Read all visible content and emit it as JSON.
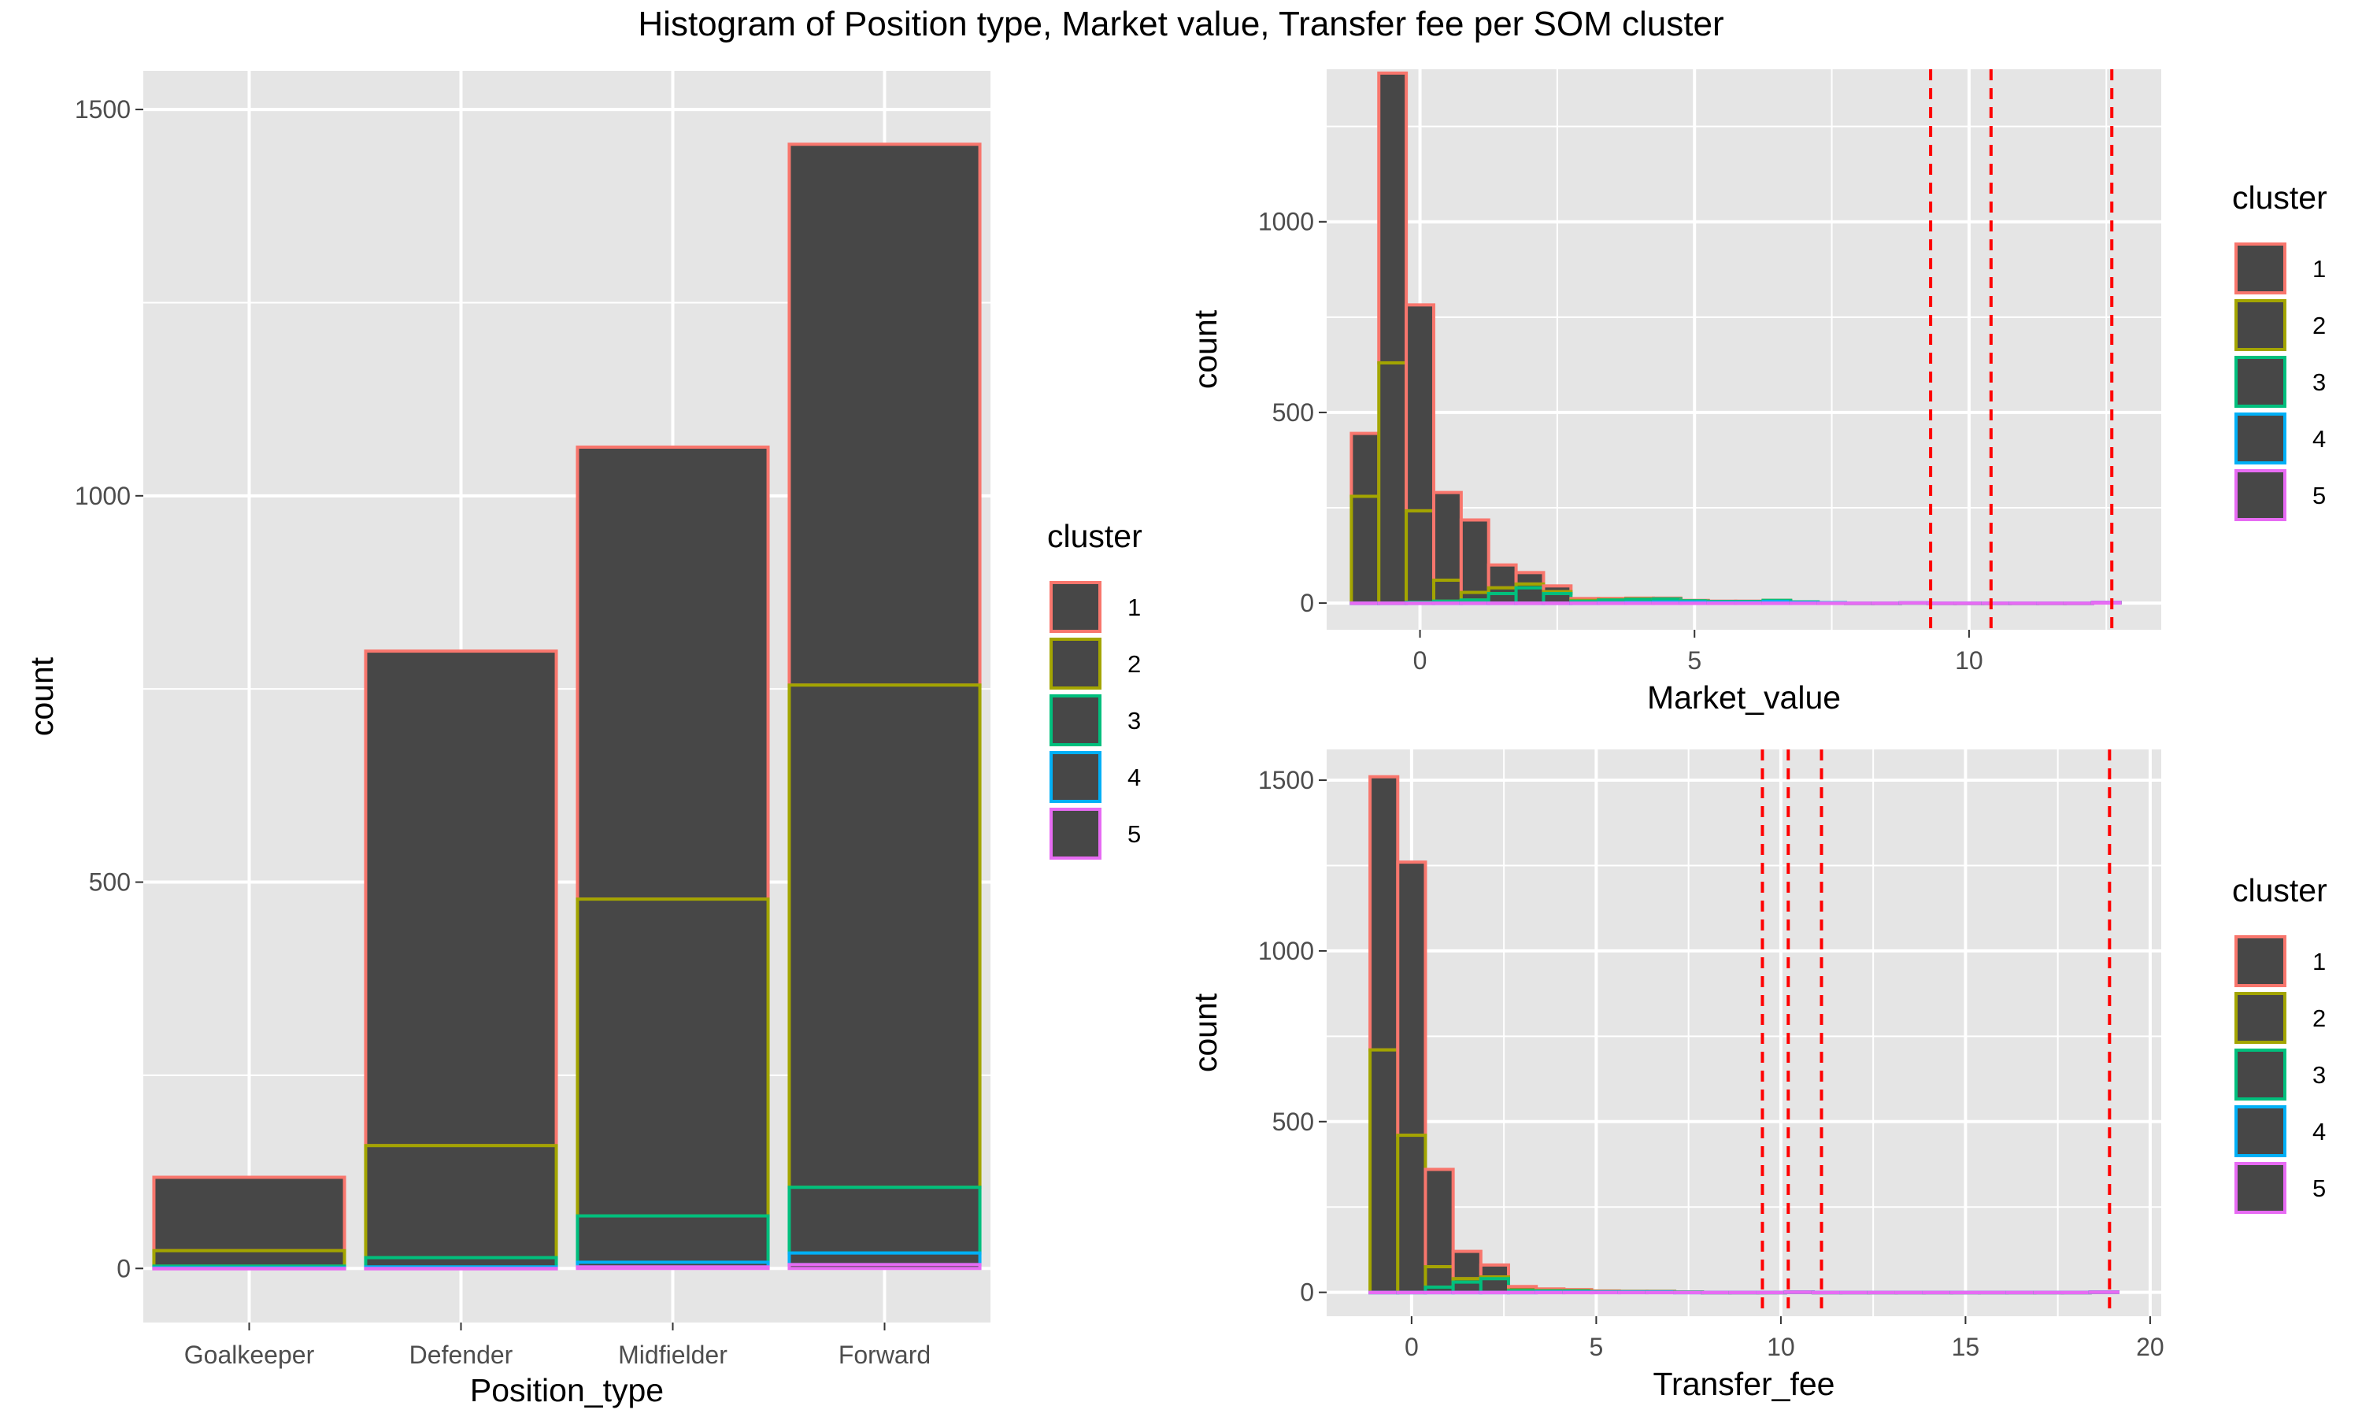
{
  "title": "Histogram of Position type, Market value, Transfer fee per SOM cluster",
  "colors": {
    "panel_bg": "#e5e5e5",
    "grid": "#ffffff",
    "bar_fill": "#474747",
    "cluster": [
      "#f8766d",
      "#a3a500",
      "#00bf7d",
      "#00b0f6",
      "#e76bf3"
    ],
    "vline": "#ff0000"
  },
  "legend": {
    "title": "cluster",
    "labels": [
      "1",
      "2",
      "3",
      "4",
      "5"
    ]
  },
  "chart_data": [
    {
      "type": "bar",
      "stacked": true,
      "xlabel": "Position_type",
      "ylabel": "count",
      "categories": [
        "Goalkeeper",
        "Defender",
        "Midfielder",
        "Forward"
      ],
      "ylim": [
        -70,
        1550
      ],
      "yticks": [
        0,
        500,
        1000,
        1500
      ],
      "series": [
        {
          "name": "1",
          "values": [
            95,
            640,
            585,
            700
          ]
        },
        {
          "name": "2",
          "values": [
            20,
            145,
            410,
            650
          ]
        },
        {
          "name": "3",
          "values": [
            2,
            12,
            60,
            85
          ]
        },
        {
          "name": "4",
          "values": [
            1,
            2,
            6,
            15
          ]
        },
        {
          "name": "5",
          "values": [
            0,
            0,
            2,
            5
          ]
        }
      ],
      "legend_position": "right"
    },
    {
      "type": "histogram",
      "stacked": true,
      "xlabel": "Market_value",
      "ylabel": "count",
      "xlim": [
        -1.7,
        13.5
      ],
      "ylim": [
        -70,
        1400
      ],
      "xticks": [
        0,
        5,
        10
      ],
      "yticks": [
        0,
        500,
        1000
      ],
      "bin_width": 0.5,
      "bin_centers": [
        -1.0,
        -0.5,
        0.0,
        0.5,
        1.0,
        1.5,
        2.0,
        2.5,
        3.0,
        3.5,
        4.0,
        4.5,
        5.0,
        5.5,
        6.0,
        6.5,
        7.0,
        7.5,
        8.0,
        8.5,
        9.0,
        9.5,
        10.0,
        10.5,
        11.0,
        11.5,
        12.0,
        12.5
      ],
      "series": [
        {
          "name": "1",
          "values": [
            165,
            760,
            540,
            230,
            190,
            60,
            30,
            15,
            5,
            3,
            2,
            2,
            1,
            1,
            1,
            0,
            0,
            0,
            0,
            0,
            0,
            0,
            0,
            0,
            0,
            0,
            0,
            0
          ]
        },
        {
          "name": "2",
          "values": [
            280,
            630,
            240,
            55,
            20,
            15,
            10,
            5,
            2,
            1,
            1,
            0,
            0,
            0,
            0,
            0,
            0,
            0,
            0,
            0,
            0,
            0,
            0,
            0,
            0,
            0,
            0,
            0
          ]
        },
        {
          "name": "3",
          "values": [
            0,
            0,
            2,
            5,
            8,
            25,
            40,
            25,
            5,
            7,
            8,
            8,
            3,
            2,
            2,
            3,
            1,
            0,
            0,
            0,
            0,
            0,
            0,
            0,
            0,
            0,
            0,
            0
          ]
        },
        {
          "name": "4",
          "values": [
            0,
            0,
            0,
            0,
            0,
            0,
            0,
            0,
            0,
            1,
            2,
            3,
            3,
            2,
            2,
            4,
            2,
            1,
            0,
            0,
            0,
            0,
            0,
            0,
            0,
            0,
            0,
            0
          ]
        },
        {
          "name": "5",
          "values": [
            0,
            0,
            0,
            0,
            0,
            0,
            0,
            0,
            0,
            0,
            0,
            0,
            0,
            0,
            0,
            0,
            0,
            0,
            0,
            0,
            1,
            0,
            0,
            0,
            0,
            0,
            0,
            2
          ]
        }
      ],
      "vlines": [
        9.3,
        10.4,
        12.6
      ],
      "legend_position": "right"
    },
    {
      "type": "histogram",
      "stacked": true,
      "xlabel": "Transfer_fee",
      "ylabel": "count",
      "xlim": [
        -2.3,
        20.3
      ],
      "ylim": [
        -70,
        1590
      ],
      "xticks": [
        0,
        5,
        10,
        15,
        20
      ],
      "yticks": [
        0,
        500,
        1000,
        1500
      ],
      "bin_width": 0.75,
      "bin_centers": [
        -0.75,
        0.0,
        0.75,
        1.5,
        2.25,
        3.0,
        3.75,
        4.5,
        5.25,
        6.0,
        6.75,
        7.5,
        8.25,
        9.0,
        9.75,
        10.5,
        11.25,
        12.0,
        12.75,
        13.5,
        14.25,
        15.0,
        15.75,
        16.5,
        17.25,
        18.0,
        18.75
      ],
      "series": [
        {
          "name": "1",
          "values": [
            800,
            800,
            285,
            80,
            35,
            10,
            5,
            3,
            2,
            1,
            1,
            0,
            0,
            0,
            0,
            0,
            0,
            0,
            0,
            0,
            0,
            0,
            0,
            0,
            0,
            0,
            0
          ]
        },
        {
          "name": "2",
          "values": [
            710,
            460,
            60,
            10,
            5,
            2,
            1,
            1,
            0,
            0,
            0,
            0,
            0,
            0,
            0,
            0,
            0,
            0,
            0,
            0,
            0,
            0,
            0,
            0,
            0,
            0,
            0
          ]
        },
        {
          "name": "3",
          "values": [
            0,
            0,
            15,
            30,
            40,
            5,
            3,
            3,
            1,
            1,
            1,
            1,
            0,
            0,
            0,
            0,
            0,
            0,
            0,
            0,
            0,
            0,
            0,
            0,
            0,
            0,
            0
          ]
        },
        {
          "name": "4",
          "values": [
            0,
            0,
            0,
            0,
            0,
            0,
            1,
            1,
            1,
            1,
            1,
            0,
            0,
            0,
            0,
            0,
            0,
            0,
            0,
            0,
            0,
            0,
            0,
            0,
            0,
            0,
            0
          ]
        },
        {
          "name": "5",
          "values": [
            0,
            0,
            0,
            0,
            0,
            0,
            0,
            0,
            0,
            0,
            0,
            0,
            0,
            0,
            0,
            1,
            0,
            0,
            0,
            0,
            0,
            0,
            0,
            0,
            0,
            0,
            1
          ]
        }
      ],
      "vlines": [
        9.5,
        10.2,
        11.1,
        18.9
      ],
      "legend_position": "right"
    }
  ]
}
